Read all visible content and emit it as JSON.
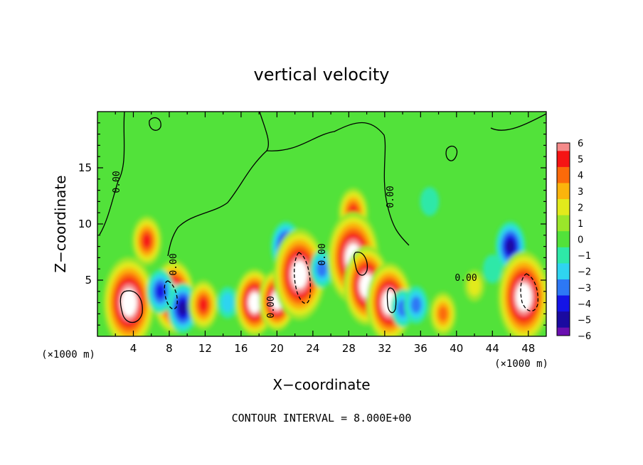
{
  "chart_data": {
    "type": "heatmap",
    "title": "vertical velocity",
    "xlabel": "X−coordinate",
    "ylabel": "Z−coordinate",
    "x_unit_left": "(×1000 m)",
    "x_unit_right": "(×1000 m)",
    "footer": "CONTOUR INTERVAL = 8.000E+00",
    "xlim": [
      0,
      50
    ],
    "ylim": [
      0,
      20
    ],
    "x_ticks": [
      "4",
      "8",
      "12",
      "16",
      "20",
      "24",
      "28",
      "32",
      "36",
      "40",
      "44",
      "48"
    ],
    "y_ticks": [
      "5",
      "10",
      "15"
    ],
    "colorbar": {
      "range": [
        -6,
        6
      ],
      "labels": [
        "6",
        "5",
        "4",
        "3",
        "2",
        "1",
        "0",
        "−1",
        "−2",
        "−3",
        "−4",
        "−5",
        "−6"
      ]
    },
    "contour_labels": [
      "0.00",
      "0.00",
      "0.00",
      "0.00",
      "0.00",
      "0.00"
    ],
    "features": [
      {
        "x": 3.5,
        "z": 3.0,
        "value": 12
      },
      {
        "x": 5.5,
        "z": 8.5,
        "value": 5
      },
      {
        "x": 8.5,
        "z": 3.5,
        "value": 9
      },
      {
        "x": 9.5,
        "z": 2.5,
        "value": -5
      },
      {
        "x": 7.0,
        "z": 4.0,
        "value": -4
      },
      {
        "x": 11.8,
        "z": 2.8,
        "value": 5
      },
      {
        "x": 14.5,
        "z": 3.0,
        "value": -2
      },
      {
        "x": 17.5,
        "z": 3.0,
        "value": 8
      },
      {
        "x": 20.0,
        "z": 3.2,
        "value": 7
      },
      {
        "x": 21.0,
        "z": 8.0,
        "value": -5
      },
      {
        "x": 22.5,
        "z": 5.5,
        "value": 12
      },
      {
        "x": 25.0,
        "z": 6.0,
        "value": -3
      },
      {
        "x": 28.5,
        "z": 11.0,
        "value": 5
      },
      {
        "x": 28.5,
        "z": 7.0,
        "value": 12
      },
      {
        "x": 30.0,
        "z": 4.5,
        "value": 10
      },
      {
        "x": 32.5,
        "z": 3.0,
        "value": 10
      },
      {
        "x": 34.0,
        "z": 2.5,
        "value": -3
      },
      {
        "x": 35.5,
        "z": 2.8,
        "value": -3
      },
      {
        "x": 38.5,
        "z": 2.0,
        "value": 4
      },
      {
        "x": 37.0,
        "z": 12.0,
        "value": -1.5
      },
      {
        "x": 42.0,
        "z": 4.5,
        "value": 2
      },
      {
        "x": 44.0,
        "z": 6.0,
        "value": -1.5
      },
      {
        "x": 46.0,
        "z": 8.0,
        "value": -5
      },
      {
        "x": 47.5,
        "z": 3.5,
        "value": 12
      }
    ]
  }
}
